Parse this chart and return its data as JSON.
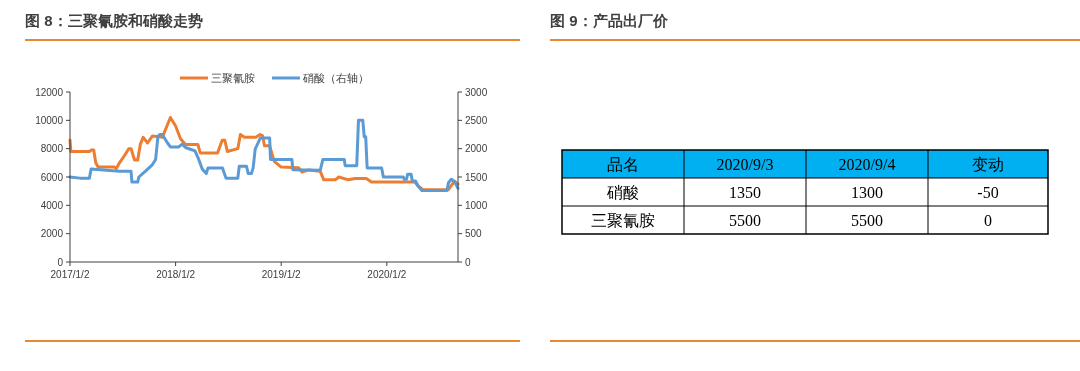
{
  "chart_data": [
    {
      "type": "line",
      "title": "图 8：三聚氰胺和硝酸走势",
      "legend": "top",
      "xlim": [
        "2017-01-02",
        "2020-09-04"
      ],
      "xticks": [
        {
          "value": "2017-01-02",
          "label": "2017/1/2"
        },
        {
          "value": "2018-01-02",
          "label": "2018/1/2"
        },
        {
          "value": "2019-01-02",
          "label": "2019/1/2"
        },
        {
          "value": "2020-01-02",
          "label": "2020/1/2"
        }
      ],
      "ylim": [
        0,
        12000
      ],
      "yticks": [
        0,
        2000,
        4000,
        6000,
        8000,
        10000,
        12000
      ],
      "y2lim": [
        0,
        3000
      ],
      "y2ticks": [
        0,
        500,
        1000,
        1500,
        2000,
        2500,
        3000
      ],
      "series": [
        {
          "name": "三聚氰胺",
          "color": "#ed7d31",
          "x": [
            "2017-01-02",
            "2017-01-05",
            "2017-03-10",
            "2017-03-16",
            "2017-03-25",
            "2017-04-01",
            "2017-04-09",
            "2017-06-05",
            "2017-06-11",
            "2017-06-22",
            "2017-07-09",
            "2017-07-24",
            "2017-08-01",
            "2017-08-13",
            "2017-08-24",
            "2017-09-02",
            "2017-09-12",
            "2017-09-27",
            "2017-10-14",
            "2017-11-17",
            "2017-12-15",
            "2018-01-02",
            "2018-01-19",
            "2018-02-05",
            "2018-03-20",
            "2018-03-28",
            "2018-05-27",
            "2018-06-12",
            "2018-06-21",
            "2018-06-30",
            "2018-08-05",
            "2018-08-14",
            "2018-08-28",
            "2018-10-06",
            "2018-10-21",
            "2018-10-30",
            "2018-11-05",
            "2018-11-23",
            "2018-12-09",
            "2019-01-02",
            "2019-03-03",
            "2019-03-15",
            "2019-04-07",
            "2019-05-17",
            "2019-05-29",
            "2019-07-08",
            "2019-07-20",
            "2019-08-22",
            "2019-09-14",
            "2019-10-23",
            "2019-11-10",
            "2020-04-08",
            "2020-04-20",
            "2020-05-06",
            "2020-08-01",
            "2020-08-23",
            "2020-09-04"
          ],
          "values": [
            8600,
            7800,
            7800,
            7900,
            7900,
            7000,
            6700,
            6700,
            6600,
            7000,
            7500,
            8000,
            8000,
            7200,
            7200,
            8300,
            8800,
            8400,
            8900,
            8800,
            10200,
            9600,
            8700,
            8300,
            8300,
            7700,
            7700,
            8600,
            8600,
            7800,
            8000,
            9000,
            8800,
            8800,
            9000,
            8900,
            8200,
            8200,
            7100,
            6700,
            6650,
            6350,
            6500,
            6400,
            5800,
            5800,
            6000,
            5800,
            5900,
            5900,
            5650,
            5650,
            5350,
            5100,
            5100,
            5700,
            5500
          ]
        },
        {
          "name": "硝酸（右轴）",
          "color": "#5b9bd5",
          "axis": "y2",
          "x": [
            "2017-01-02",
            "2017-02-05",
            "2017-03-10",
            "2017-03-16",
            "2017-05-08",
            "2017-06-22",
            "2017-08-01",
            "2017-08-04",
            "2017-08-24",
            "2017-08-28",
            "2017-09-19",
            "2017-10-14",
            "2017-10-25",
            "2017-11-02",
            "2017-11-08",
            "2017-11-17",
            "2017-12-05",
            "2017-12-15",
            "2018-01-12",
            "2018-01-25",
            "2018-02-05",
            "2018-02-22",
            "2018-03-10",
            "2018-03-23",
            "2018-04-04",
            "2018-04-18",
            "2018-04-24",
            "2018-06-13",
            "2018-06-25",
            "2018-08-05",
            "2018-08-10",
            "2018-09-04",
            "2018-09-10",
            "2018-09-21",
            "2018-09-27",
            "2018-10-04",
            "2018-10-22",
            "2018-11-23",
            "2018-11-26",
            "2019-02-08",
            "2019-02-11",
            "2019-05-17",
            "2019-05-26",
            "2019-08-08",
            "2019-08-11",
            "2019-09-20",
            "2019-09-26",
            "2019-10-11",
            "2019-10-16",
            "2019-10-21",
            "2019-10-26",
            "2019-12-15",
            "2019-12-21",
            "2020-02-28",
            "2020-03-02",
            "2020-03-10",
            "2020-03-14",
            "2020-03-26",
            "2020-03-30",
            "2020-04-10",
            "2020-04-18",
            "2020-05-02",
            "2020-07-28",
            "2020-08-02",
            "2020-08-12",
            "2020-08-23",
            "2020-08-28",
            "2020-09-04"
          ],
          "values": [
            1500,
            1480,
            1480,
            1640,
            1620,
            1600,
            1600,
            1410,
            1410,
            1500,
            1600,
            1720,
            1810,
            2220,
            2250,
            2250,
            2100,
            2030,
            2030,
            2080,
            2020,
            1990,
            1960,
            1810,
            1640,
            1560,
            1660,
            1660,
            1480,
            1480,
            1690,
            1690,
            1560,
            1560,
            1660,
            1990,
            2190,
            2190,
            1810,
            1810,
            1630,
            1620,
            1810,
            1810,
            1700,
            1700,
            2500,
            2500,
            2210,
            2210,
            1660,
            1660,
            1500,
            1500,
            1460,
            1460,
            1550,
            1550,
            1430,
            1430,
            1350,
            1260,
            1260,
            1400,
            1460,
            1420,
            1370,
            1300
          ]
        }
      ]
    },
    {
      "type": "heatmap",
      "title": "图 9：产品出厂价",
      "ylabel": "品名",
      "categories": [
        "2020/9/3",
        "2020/9/4",
        "变动"
      ],
      "y_categories": [
        "硝酸",
        "三聚氰胺"
      ],
      "cells": [
        [
          1350,
          1300,
          -50
        ],
        [
          5500,
          5500,
          0
        ]
      ],
      "data_labels": true
    }
  ]
}
